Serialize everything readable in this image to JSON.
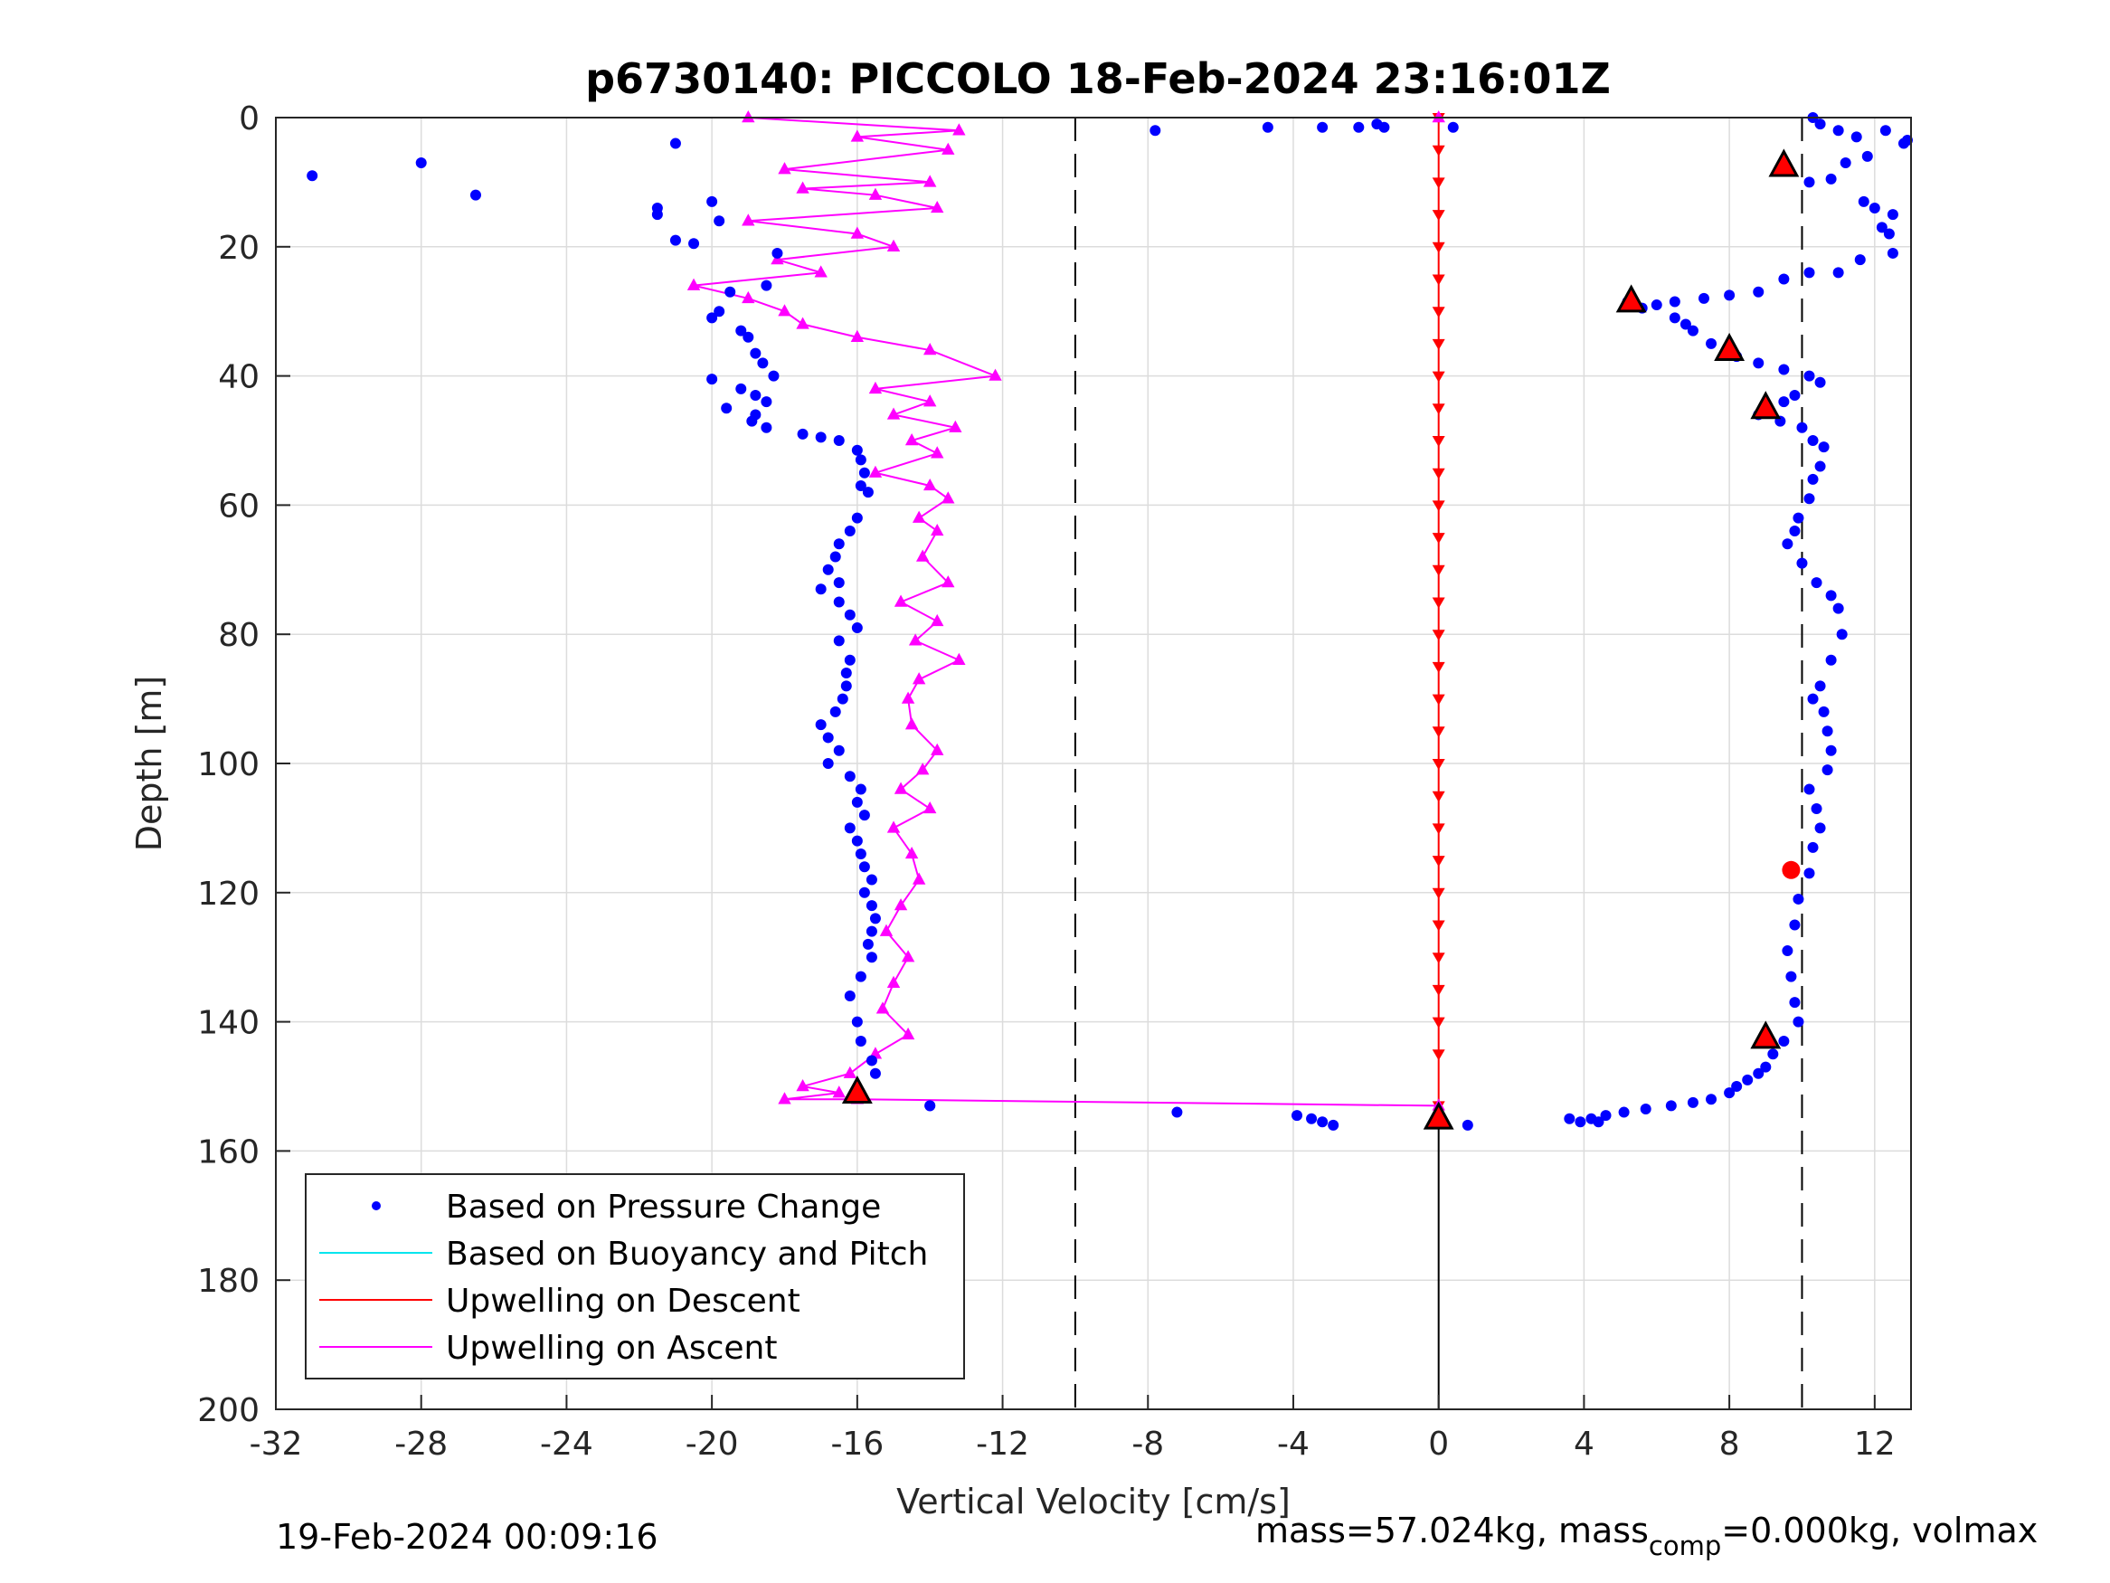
{
  "chart_data": {
    "type": "scatter",
    "title": "p6730140: PICCOLO 18-Feb-2024 23:16:01Z",
    "xlabel": "Vertical Velocity [cm/s]",
    "ylabel": "Depth [m]",
    "xlim": [
      -32,
      13
    ],
    "ylim": [
      200,
      0
    ],
    "y_reversed": true,
    "grid": true,
    "x_ticks": [
      -32,
      -28,
      -24,
      -20,
      -16,
      -12,
      -8,
      -4,
      0,
      4,
      8,
      12
    ],
    "y_ticks": [
      0,
      20,
      40,
      60,
      80,
      100,
      120,
      140,
      160,
      180,
      200
    ],
    "reference_lines": [
      {
        "x": -10,
        "style": "dashed",
        "color": "#000000"
      },
      {
        "x": 10,
        "style": "dashed",
        "color": "#000000"
      },
      {
        "x": 0,
        "style": "solid",
        "color": "#000000",
        "y_from": 155,
        "y_to": 200
      }
    ],
    "legend": {
      "placement": "bottom-left",
      "entries": [
        {
          "label": "Based on Pressure Change",
          "marker": "dot",
          "color": "#0000ff"
        },
        {
          "label": "Based on Buoyancy and Pitch",
          "marker": "line",
          "color": "#00e5ee"
        },
        {
          "label": "Upwelling on Descent",
          "marker": "line",
          "color": "#ff0000"
        },
        {
          "label": "Upwelling on Ascent",
          "marker": "line",
          "color": "#ff00ff"
        }
      ]
    },
    "colors": {
      "pressure": "#0000ff",
      "descent": "#ff0000",
      "ascent": "#ff00ff",
      "grid": "#dcdcdc"
    },
    "series": [
      {
        "name": "Based on Pressure Change",
        "kind": "points",
        "description": "left branch (ascent, negative velocity)",
        "x": [
          -31,
          -28,
          -26.5,
          -21,
          -21.5,
          -21.5,
          -20,
          -20.5,
          -19.8,
          -21,
          -18.2,
          -18.5,
          -19.5,
          -19.8,
          -20,
          -19.2,
          -19,
          -18.8,
          -18.6,
          -18.3,
          -20,
          -19.2,
          -18.8,
          -18.5,
          -18.8,
          -19.6,
          -18.9,
          -18.5,
          -17.5,
          -17,
          -16.5,
          -16,
          -15.9,
          -15.8,
          -15.9,
          -15.7,
          -16,
          -16.2,
          -16.5,
          -16.6,
          -16.8,
          -16.5,
          -17,
          -16.5,
          -16.2,
          -16.0,
          -16.5,
          -16.2,
          -16.3,
          -16.3,
          -16.4,
          -16.6,
          -17.0,
          -16.8,
          -16.5,
          -16.8,
          -16.2,
          -15.9,
          -16.0,
          -15.8,
          -16.2,
          -16.0,
          -15.9,
          -15.8,
          -15.6,
          -15.8,
          -15.6,
          -15.5,
          -15.6,
          -15.7,
          -15.6,
          -15.9,
          -16.2,
          -16.0,
          -15.9,
          -15.6,
          -15.5,
          -14
        ],
        "y": [
          9,
          7,
          12,
          4,
          14,
          15,
          13,
          19.5,
          16,
          19,
          21,
          26,
          27,
          30,
          31,
          33,
          34,
          36.5,
          38,
          40,
          40.5,
          42,
          43,
          44,
          46,
          45,
          47,
          48,
          49,
          49.5,
          50,
          51.5,
          53,
          55,
          57,
          58,
          62,
          64,
          66,
          68,
          70,
          72,
          73,
          75,
          77,
          79,
          81,
          84,
          86,
          88,
          90,
          92,
          94,
          96,
          98,
          100,
          102,
          104,
          106,
          108,
          110,
          112,
          114,
          116,
          118,
          120,
          122,
          124,
          126,
          128,
          130,
          133,
          136,
          140,
          143,
          146,
          148,
          153
        ]
      },
      {
        "name": "Based on Pressure Change",
        "kind": "points",
        "description": "right branch (descent, positive velocity)",
        "x": [
          -7.8,
          -4.7,
          -3.2,
          -2.2,
          -1.5,
          -1.7,
          0.4,
          10.3,
          10.5,
          11,
          11.5,
          12.3,
          12.8,
          12.9,
          11.8,
          11.2,
          10.8,
          10.2,
          9.6,
          11.7,
          12,
          12.5,
          12.2,
          12.4,
          12.5,
          11.6,
          11,
          10.2,
          9.5,
          8.8,
          8,
          7.3,
          6.5,
          6,
          5.6,
          5.2,
          6.5,
          6.8,
          7,
          7.5,
          8.2,
          8.8,
          9.5,
          10.2,
          10.5,
          9.8,
          9.5,
          9.0,
          8.8,
          9.4,
          10.0,
          10.3,
          10.6,
          10.5,
          10.3,
          10.2,
          9.9,
          9.8,
          9.6,
          10.0,
          10.4,
          10.8,
          11.0,
          11.1,
          10.8,
          10.5,
          10.3,
          10.6,
          10.7,
          10.8,
          10.7,
          10.2,
          10.4,
          10.5,
          10.3,
          10.2,
          9.9,
          9.8,
          9.6,
          9.7,
          9.8,
          9.9,
          9.5,
          9.2,
          9,
          8.8,
          8.5,
          8.2,
          8,
          7.5,
          7,
          6.4,
          5.7,
          5.1,
          4.6,
          4.2,
          3.6,
          3.9,
          4.4,
          -14,
          -7.2,
          -3.9,
          -3.5,
          -3.2,
          -2.9,
          0.8
        ],
        "y": [
          2,
          1.5,
          1.5,
          1.5,
          1.5,
          1,
          1.5,
          0,
          1,
          2,
          3,
          2,
          4,
          3.5,
          6,
          7,
          9.5,
          10,
          8,
          13,
          14,
          15,
          17,
          18,
          21,
          22,
          24,
          24,
          25,
          27,
          27.5,
          28,
          28.5,
          29,
          29.5,
          28.5,
          31,
          32,
          33,
          35,
          37,
          38,
          39,
          40,
          41,
          43,
          44,
          45,
          46,
          47,
          48,
          50,
          51,
          54,
          56,
          59,
          62,
          64,
          66,
          69,
          72,
          74,
          76,
          80,
          84,
          88,
          90,
          92,
          95,
          98,
          101,
          104,
          107,
          110,
          113,
          117,
          121,
          125,
          129,
          133,
          137,
          140,
          143,
          145,
          147,
          148,
          149,
          150,
          151,
          152,
          152.5,
          153,
          153.5,
          154,
          154.5,
          155,
          155,
          155.5,
          155.5,
          153,
          154,
          154.5,
          155,
          155.5,
          156,
          156
        ]
      },
      {
        "name": "Upwelling on Descent",
        "kind": "line",
        "x": [
          0,
          0,
          0,
          0,
          0,
          0,
          0,
          0,
          0,
          0,
          0,
          0,
          0,
          0,
          0,
          0,
          0,
          0,
          0,
          0,
          0,
          0,
          0,
          0,
          0,
          0,
          0,
          0,
          0,
          0,
          0
        ],
        "y": [
          0,
          5,
          10,
          15,
          20,
          25,
          30,
          35,
          40,
          45,
          50,
          55,
          60,
          65,
          70,
          75,
          80,
          85,
          90,
          95,
          100,
          105,
          110,
          115,
          120,
          125,
          130,
          135,
          140,
          145,
          153
        ]
      },
      {
        "name": "Upwelling on Ascent",
        "kind": "line",
        "x": [
          0,
          -19,
          -13.2,
          -16,
          -13.5,
          -18,
          -14,
          -17.5,
          -15.5,
          -13.8,
          -19,
          -16,
          -15,
          -18.2,
          -17,
          -20.5,
          -19,
          -18,
          -17.5,
          -16,
          -14,
          -12.2,
          -15.5,
          -14,
          -15,
          -13.3,
          -14.5,
          -13.8,
          -15.5,
          -14,
          -13.5,
          -14.3,
          -13.8,
          -14.2,
          -13.5,
          -14.8,
          -13.8,
          -14.4,
          -13.2,
          -14.3,
          -14.6,
          -14.5,
          -13.8,
          -14.2,
          -14.8,
          -14.0,
          -15.0,
          -14.5,
          -14.3,
          -14.8,
          -15.2,
          -14.6,
          -15.0,
          -15.3,
          -14.6,
          -15.5,
          -16.2,
          -17.5,
          -16.5,
          -18,
          -16,
          0
        ],
        "y": [
          0,
          0,
          2,
          3,
          5,
          8,
          10,
          11,
          12,
          14,
          16,
          18,
          20,
          22,
          24,
          26,
          28,
          30,
          32,
          34,
          36,
          40,
          42,
          44,
          46,
          48,
          50,
          52,
          55,
          57,
          59,
          62,
          64,
          68,
          72,
          75,
          78,
          81,
          84,
          87,
          90,
          94,
          98,
          101,
          104,
          107,
          110,
          114,
          118,
          122,
          126,
          130,
          134,
          138,
          142,
          145,
          148,
          150,
          151,
          152,
          152,
          153
        ]
      },
      {
        "name": "",
        "kind": "triangle-markers",
        "color": "#ff0000",
        "x": [
          9.5,
          5.3,
          8,
          9,
          9,
          -16,
          0
        ],
        "y": [
          7.5,
          28.5,
          36,
          45,
          142.5,
          151,
          155
        ]
      },
      {
        "name": "",
        "kind": "circle-marker",
        "color": "#ff0000",
        "x": [
          9.7
        ],
        "y": [
          116.5
        ]
      }
    ]
  },
  "footer": {
    "timestamp": "19-Feb-2024 00:09:16",
    "mass_text_pre": "mass=57.024kg, mass",
    "mass_text_sub": "comp",
    "mass_text_post": "=0.000kg, volmax"
  }
}
